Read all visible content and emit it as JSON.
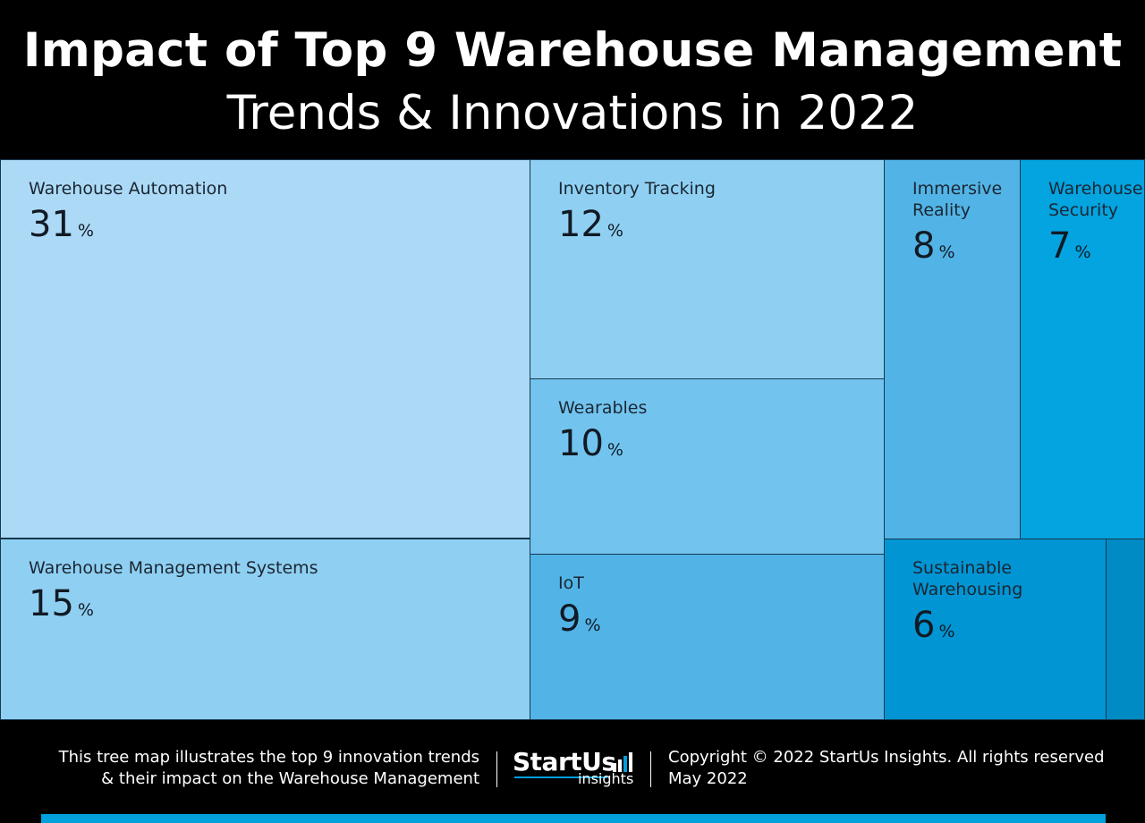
{
  "header": {
    "title_line1": "Impact of Top 9 Warehouse Management",
    "title_line2": "Trends & Innovations in 2022"
  },
  "chart_data": {
    "type": "treemap",
    "title": "Impact of Top 9 Warehouse Management Trends & Innovations in 2022",
    "unit": "%",
    "items": [
      {
        "label": "Warehouse Automation",
        "value": 31,
        "color": "#acdaf6"
      },
      {
        "label": "Warehouse Management Systems",
        "value": 15,
        "color": "#8fd0f2"
      },
      {
        "label": "Inventory Tracking",
        "value": 12,
        "color": "#8fd0f2"
      },
      {
        "label": "Wearables",
        "value": 10,
        "color": "#72c4ef"
      },
      {
        "label": "IoT",
        "value": 9,
        "color": "#52b4e6"
      },
      {
        "label": "Immersive Reality",
        "value": 8,
        "color": "#52b4e6"
      },
      {
        "label": "Warehouse Security",
        "value": 7,
        "color": "#03a4e0"
      },
      {
        "label": "Sustainable Warehousing",
        "value": 6,
        "color": "#0195d3"
      },
      {
        "label": "",
        "value": null,
        "color": "#018bc4"
      }
    ]
  },
  "footer": {
    "description_line1": "This tree map illustrates the top 9 innovation trends",
    "description_line2": "& their impact on the Warehouse Management",
    "logo_main": "StartUs",
    "logo_sub": "insights",
    "copyright": "Copyright © 2022 StartUs Insights. All rights reserved",
    "date": "May 2022"
  }
}
